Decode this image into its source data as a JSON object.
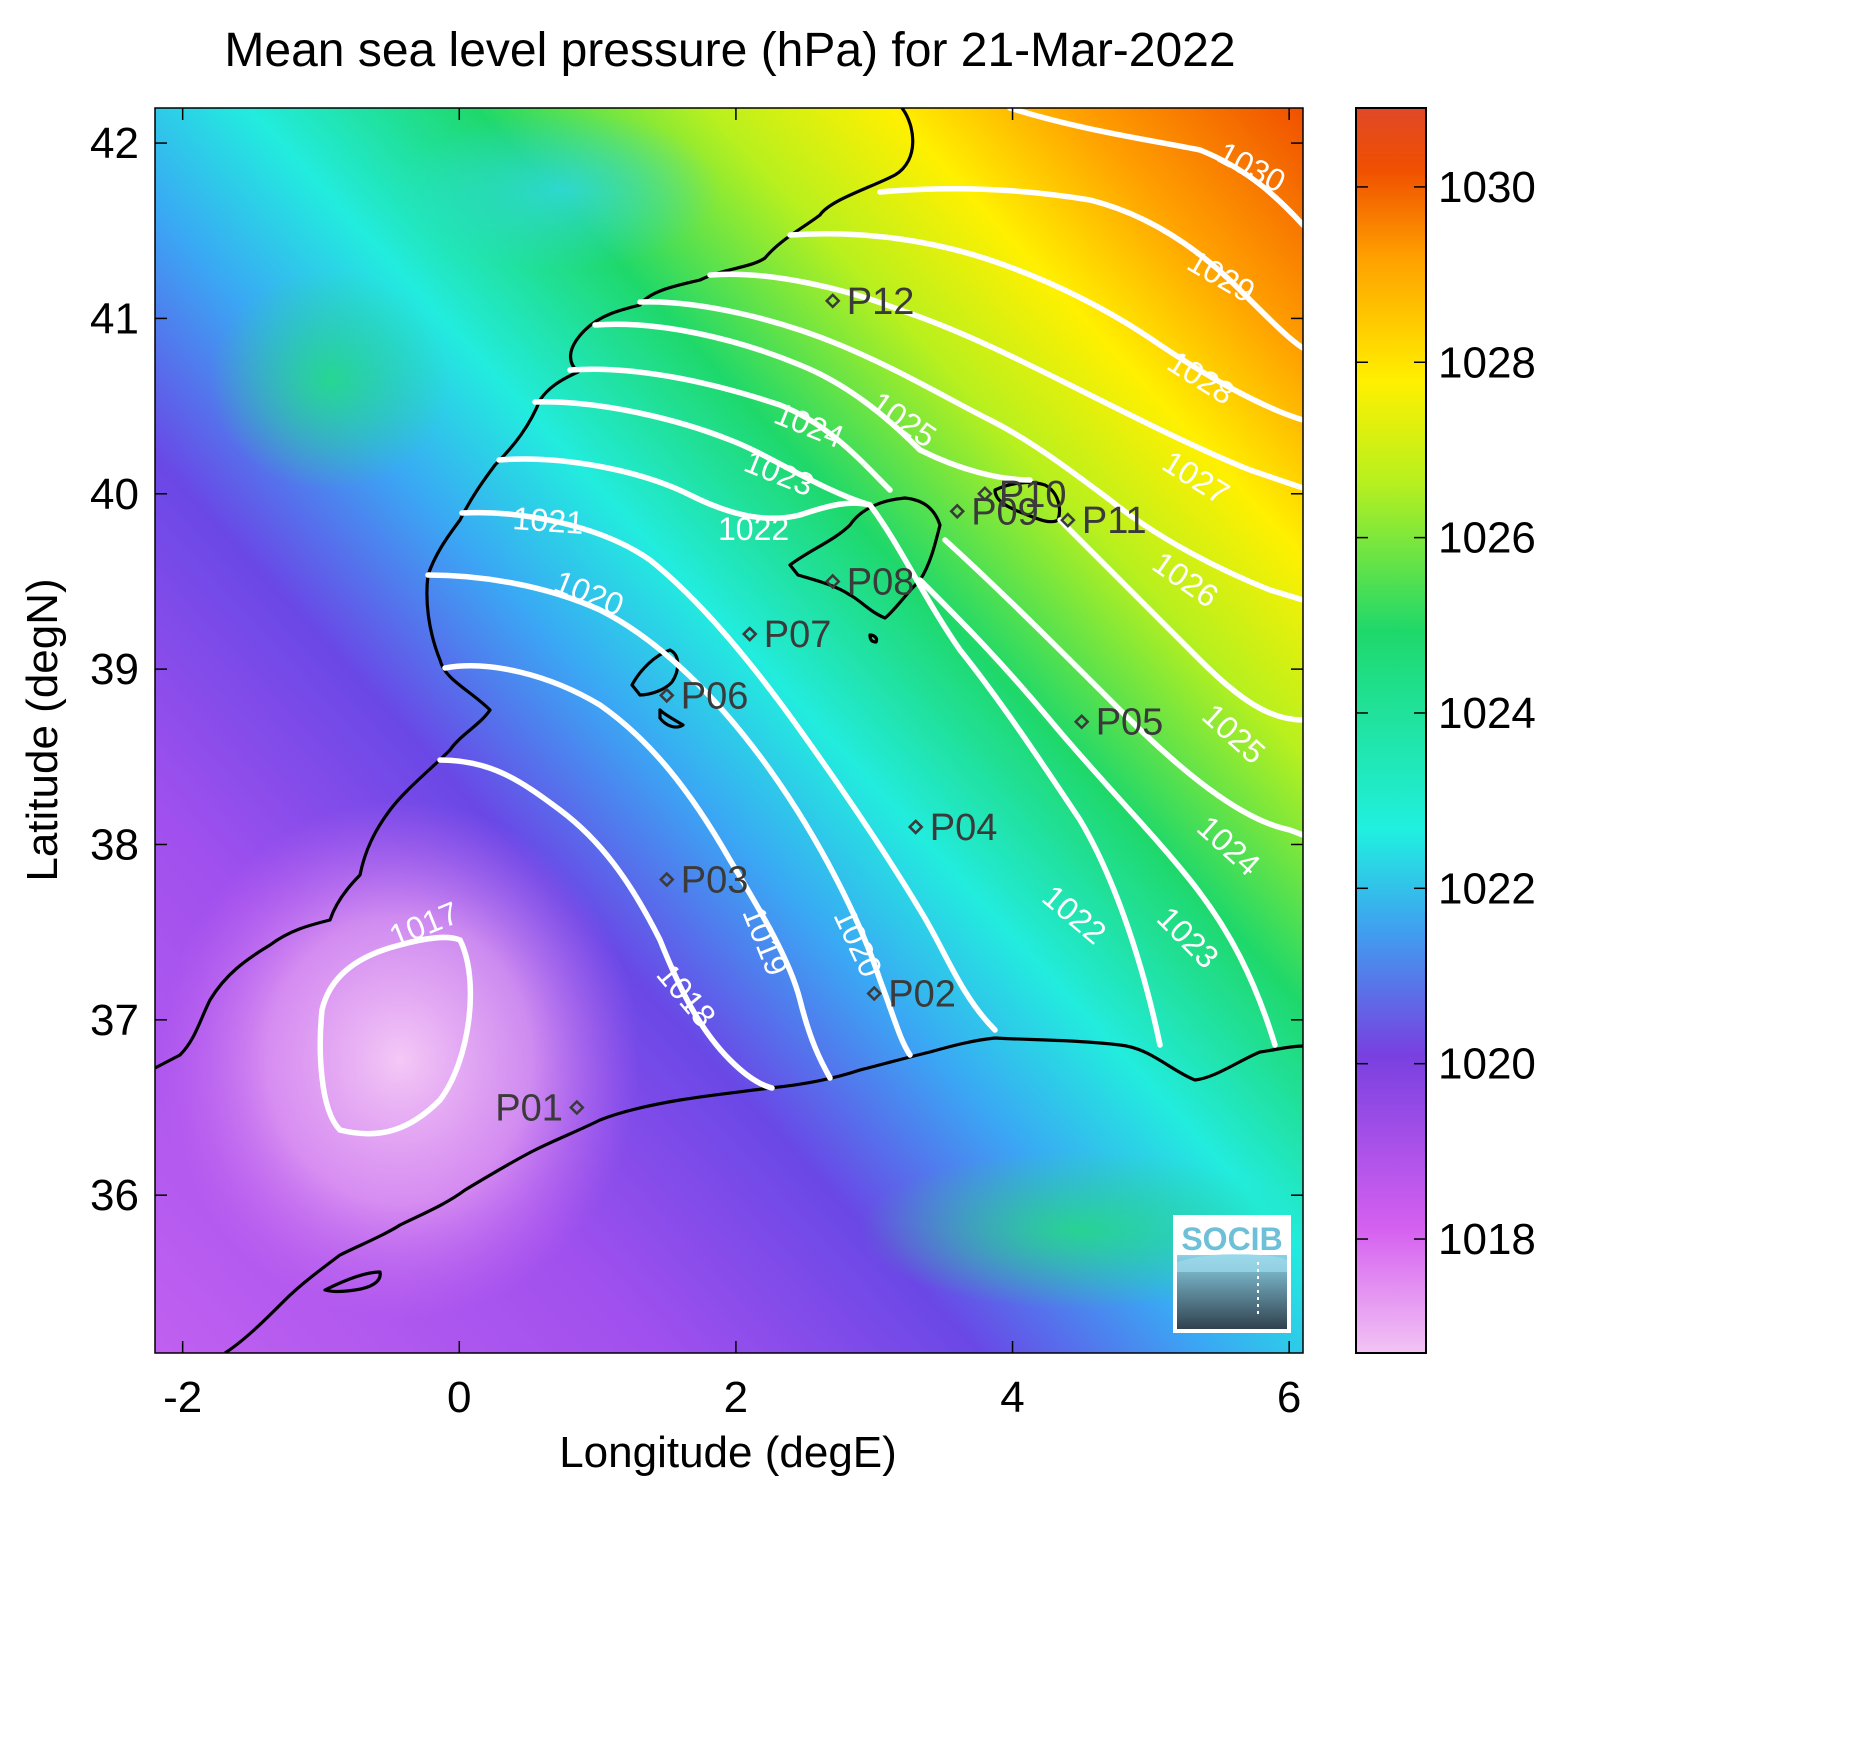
{
  "title": "Mean sea level pressure (hPa) for 21-Mar-2022",
  "map": {
    "xlabel": "Longitude (degE)",
    "ylabel": "Latitude (degN)",
    "x_ticks": [
      "-2",
      "0",
      "2",
      "4",
      "6"
    ],
    "y_ticks": [
      "36",
      "37",
      "38",
      "39",
      "40",
      "41",
      "42"
    ],
    "xlim": [
      -2.2,
      6.1
    ],
    "ylim": [
      35.1,
      42.2
    ],
    "contour_interval_hPa": 1,
    "contour_color": "#ffffff",
    "coastline_color": "#000000"
  },
  "colorbar": {
    "ticks": [
      "1018",
      "1020",
      "1022",
      "1024",
      "1026",
      "1028",
      "1030"
    ],
    "range_hPa": [
      1016.7,
      1030.9
    ],
    "colormap": [
      "#f2c4f4",
      "#d560f0",
      "#7840e0",
      "#3fa0f0",
      "#20f0e0",
      "#1fd86a",
      "#b8f01e",
      "#fff000",
      "#ffa000",
      "#f05000",
      "#e04828"
    ]
  },
  "contour_labels": [
    "1017",
    "1018",
    "1019",
    "1020",
    "1020",
    "1021",
    "1022",
    "1022",
    "1023",
    "1023",
    "1024",
    "1024",
    "1024",
    "1025",
    "1025",
    "1026",
    "1027",
    "1028",
    "1029",
    "1030"
  ],
  "stations": [
    {
      "name": "P01",
      "lon": 0.85,
      "lat": 36.5
    },
    {
      "name": "P02",
      "lon": 3.0,
      "lat": 37.15
    },
    {
      "name": "P03",
      "lon": 1.5,
      "lat": 37.8
    },
    {
      "name": "P04",
      "lon": 3.3,
      "lat": 38.1
    },
    {
      "name": "P05",
      "lon": 4.5,
      "lat": 38.7
    },
    {
      "name": "P06",
      "lon": 1.5,
      "lat": 38.85
    },
    {
      "name": "P07",
      "lon": 2.1,
      "lat": 39.2
    },
    {
      "name": "P08",
      "lon": 2.7,
      "lat": 39.5
    },
    {
      "name": "P09",
      "lon": 3.6,
      "lat": 39.9
    },
    {
      "name": "P10",
      "lon": 3.8,
      "lat": 40.0
    },
    {
      "name": "P11",
      "lon": 4.4,
      "lat": 39.85
    },
    {
      "name": "P12",
      "lon": 2.7,
      "lat": 41.1
    }
  ],
  "logo": {
    "text": "SOCIB"
  }
}
